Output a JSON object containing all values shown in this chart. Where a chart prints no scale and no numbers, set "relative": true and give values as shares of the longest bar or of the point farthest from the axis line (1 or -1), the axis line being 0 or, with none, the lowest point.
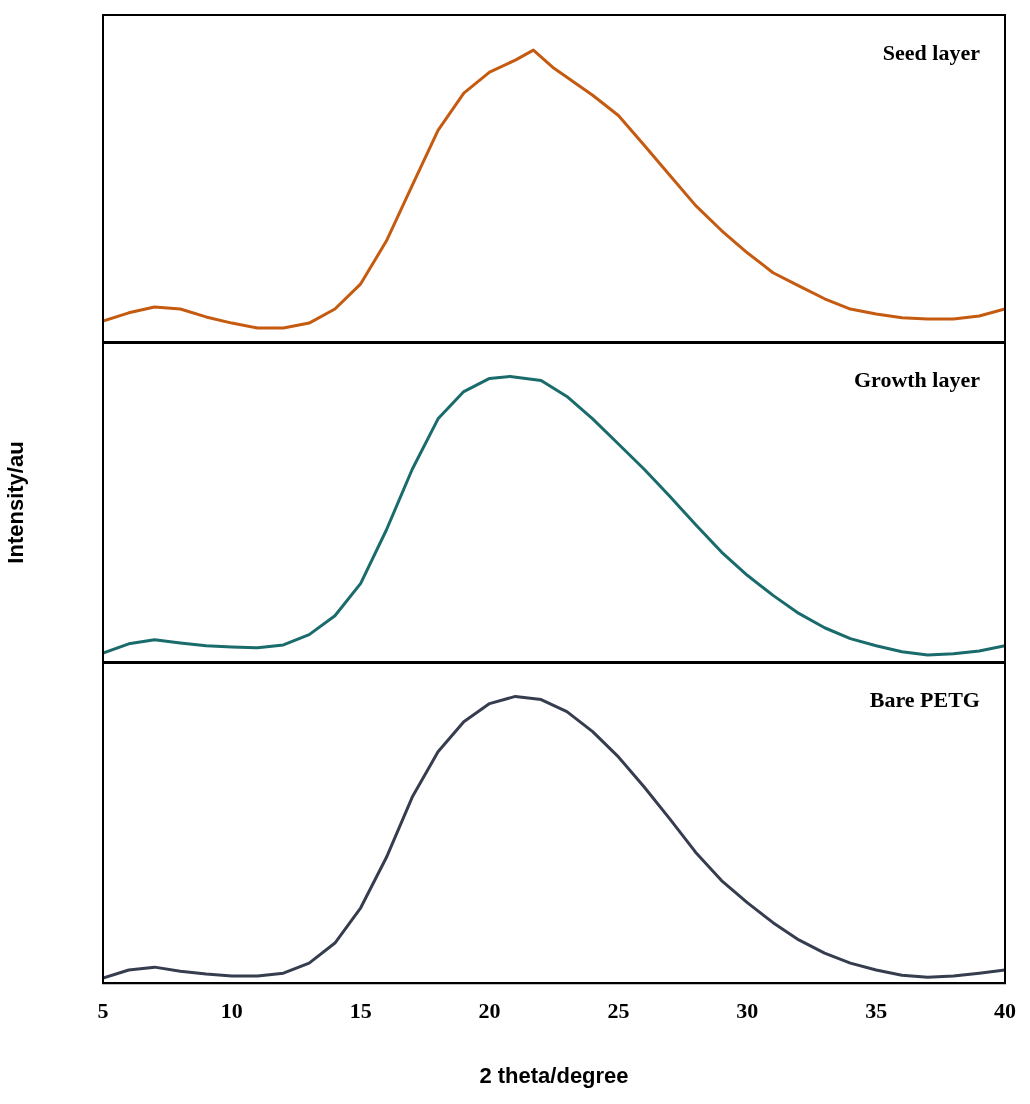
{
  "chart_data": [
    {
      "type": "line",
      "relative": true,
      "xlim": [
        5,
        40
      ],
      "xticks": [
        5,
        10,
        15,
        20,
        25,
        30,
        35,
        40
      ],
      "tick_labels": false,
      "grid": false,
      "legend": false,
      "x": [
        5,
        6,
        7,
        8,
        9,
        10,
        11,
        12,
        13,
        14,
        15,
        16,
        17,
        18,
        19,
        20,
        21,
        21.7,
        22.5,
        24,
        25,
        26,
        27,
        28,
        29,
        30,
        31,
        32,
        33,
        34,
        35,
        36,
        37,
        38,
        39,
        40
      ],
      "series": [
        {
          "name": "Seed layer",
          "color": "#c55a11",
          "values": [
            0.075,
            0.103,
            0.123,
            0.116,
            0.089,
            0.068,
            0.051,
            0.051,
            0.068,
            0.116,
            0.202,
            0.349,
            0.538,
            0.726,
            0.853,
            0.925,
            0.966,
            1,
            0.938,
            0.846,
            0.777,
            0.675,
            0.572,
            0.469,
            0.384,
            0.308,
            0.24,
            0.195,
            0.151,
            0.116,
            0.099,
            0.086,
            0.082,
            0.082,
            0.092,
            0.116
          ]
        }
      ]
    },
    {
      "type": "line",
      "relative": true,
      "xlim": [
        5,
        40
      ],
      "xticks": [
        5,
        10,
        15,
        20,
        25,
        30,
        35,
        40
      ],
      "tick_labels": false,
      "grid": false,
      "legend": false,
      "ylabel": "Intensity/au",
      "x": [
        5,
        6,
        7,
        8,
        9,
        10,
        11,
        12,
        13,
        14,
        15,
        16,
        17,
        18,
        19,
        20,
        20.8,
        22,
        23,
        24,
        25,
        26,
        27,
        28,
        29,
        30,
        31,
        32,
        33,
        34,
        35,
        36,
        37,
        38,
        39,
        40
      ],
      "series": [
        {
          "name": "Growth layer",
          "color": "#1a6b6b",
          "values": [
            0.035,
            0.067,
            0.081,
            0.07,
            0.06,
            0.056,
            0.053,
            0.063,
            0.099,
            0.165,
            0.278,
            0.465,
            0.676,
            0.852,
            0.947,
            0.993,
            1,
            0.986,
            0.93,
            0.852,
            0.764,
            0.676,
            0.581,
            0.482,
            0.387,
            0.306,
            0.236,
            0.173,
            0.123,
            0.085,
            0.06,
            0.039,
            0.028,
            0.032,
            0.042,
            0.06
          ]
        }
      ]
    },
    {
      "type": "line",
      "relative": true,
      "xlim": [
        5,
        40
      ],
      "xticks": [
        5,
        10,
        15,
        20,
        25,
        30,
        35,
        40
      ],
      "tick_labels": "x",
      "grid": false,
      "legend": false,
      "xlabel": "2 theta/degree",
      "x": [
        5,
        6,
        7,
        8,
        9,
        10,
        11,
        12,
        13,
        14,
        15,
        16,
        17,
        18,
        19,
        20,
        21,
        22,
        23,
        24,
        25,
        26,
        27,
        28,
        29,
        30,
        31,
        32,
        33,
        34,
        35,
        36,
        37,
        38,
        39,
        40
      ],
      "series": [
        {
          "name": "Bare PETG",
          "color": "#363d4f",
          "values": [
            0.018,
            0.046,
            0.056,
            0.042,
            0.032,
            0.025,
            0.025,
            0.035,
            0.07,
            0.14,
            0.263,
            0.439,
            0.649,
            0.807,
            0.912,
            0.975,
            1,
            0.989,
            0.947,
            0.877,
            0.789,
            0.684,
            0.572,
            0.456,
            0.358,
            0.281,
            0.211,
            0.151,
            0.105,
            0.07,
            0.046,
            0.028,
            0.021,
            0.025,
            0.035,
            0.046
          ]
        }
      ]
    }
  ]
}
